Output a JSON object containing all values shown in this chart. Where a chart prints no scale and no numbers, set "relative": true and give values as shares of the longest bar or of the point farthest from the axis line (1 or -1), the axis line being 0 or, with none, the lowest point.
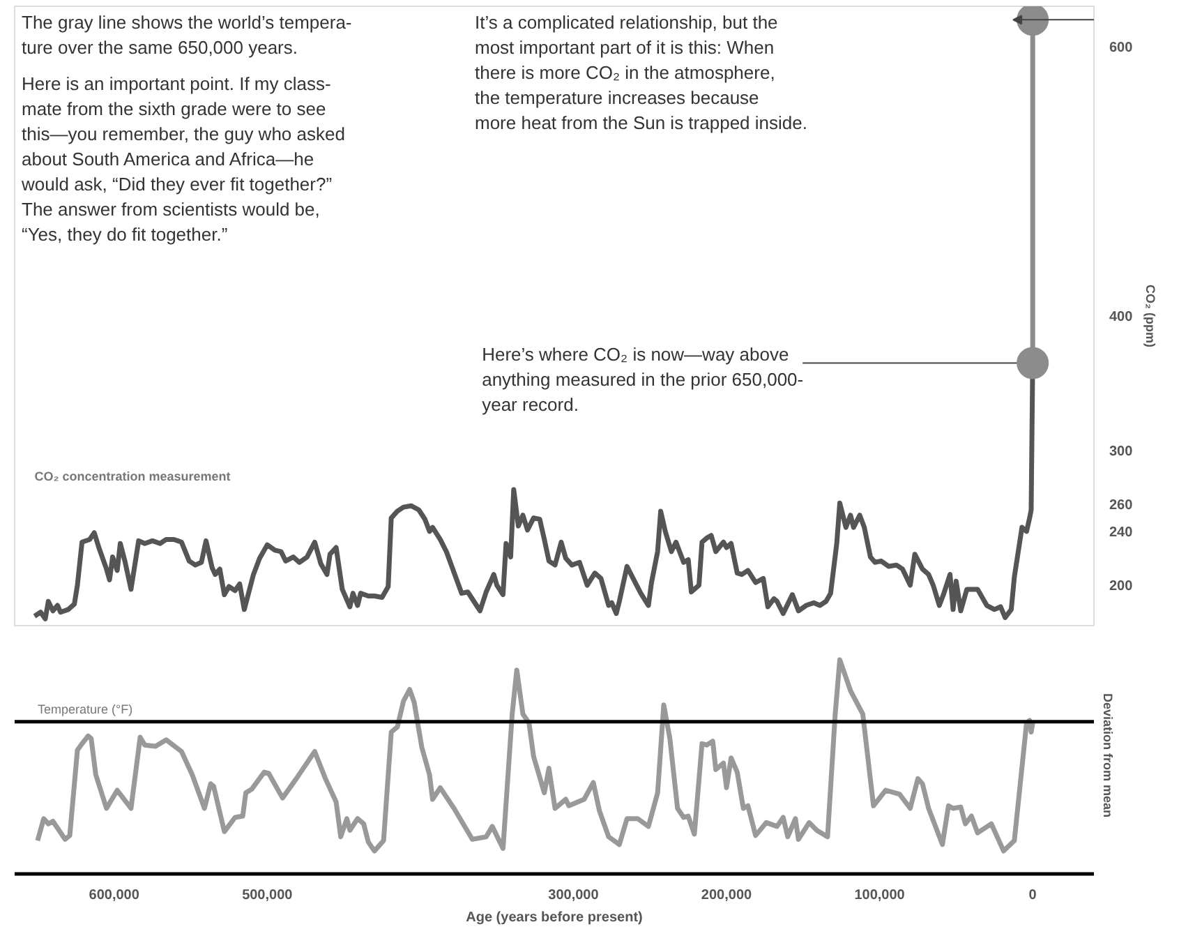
{
  "chart_data": [
    {
      "type": "line",
      "ylabel": "CO₂ (ppm)",
      "xlim": [
        665000,
        -40000
      ],
      "ylim": [
        170,
        630
      ],
      "yticks": [
        200,
        240,
        260,
        300,
        400,
        600
      ],
      "tick_labels": "y",
      "grid": false,
      "annotations": [
        "The gray line shows the world’s tempera-\nture over the same 650,000 years.",
        "Here is an important point. If my class-\nmate from the sixth grade were to see\nthis—you remember, the guy who asked\nabout South America and Africa—he\nwould ask, “Did they ever fit together?”",
        "The answer from scientists would be,\n“Yes, they do fit together.”",
        "It’s a complicated relationship, but the\nmost important part of it is this: When\nthere is more CO₂ in the atmosphere,\nthe temperature increases because\nmore heat from the Sun is trapped inside.",
        {
          "text": "Here’s where CO₂ is now—way above\nanything measured in the prior 650,000-\nyear record.",
          "x": 0,
          "y": 365
        }
      ],
      "series": [
        {
          "name": "CO₂ concentration measurement",
          "color": "#555555",
          "marker": "none",
          "x": [
            652000,
            648000,
            645000,
            643000,
            640000,
            637000,
            635000,
            630000,
            626000,
            624000,
            621000,
            616000,
            613000,
            610000,
            605000,
            603000,
            601000,
            598000,
            596000,
            593000,
            589000,
            584000,
            580000,
            575000,
            570000,
            566000,
            561000,
            556000,
            551000,
            547000,
            543000,
            540000,
            536000,
            534000,
            531000,
            528000,
            525000,
            521000,
            518000,
            515000,
            509000,
            505000,
            500000,
            495000,
            491000,
            488000,
            483000,
            479000,
            474000,
            469000,
            465000,
            461000,
            459000,
            455000,
            451000,
            446000,
            444000,
            441000,
            439000,
            434000,
            430000,
            425000,
            421000,
            419000,
            415000,
            411000,
            406000,
            401000,
            397000,
            394000,
            392000,
            387000,
            383000,
            373000,
            369000,
            361000,
            357000,
            352000,
            350000,
            346000,
            344000,
            341000,
            339000,
            336000,
            333000,
            330000,
            326000,
            322000,
            319000,
            316000,
            312000,
            308000,
            305000,
            301000,
            296000,
            291000,
            286000,
            282000,
            277000,
            275000,
            272000,
            270000,
            265000,
            261000,
            256000,
            251000,
            249000,
            245000,
            243000,
            240000,
            236000,
            233000,
            228000,
            225000,
            223000,
            218000,
            216000,
            213000,
            210000,
            207000,
            202000,
            200000,
            197000,
            193000,
            190000,
            186000,
            181000,
            176000,
            173000,
            169000,
            167000,
            163000,
            157000,
            153000,
            148000,
            143000,
            139000,
            135000,
            132000,
            128000,
            126000,
            122000,
            119000,
            117000,
            113000,
            110000,
            106000,
            103000,
            99000,
            94000,
            89000,
            85000,
            80000,
            77000,
            72000,
            68000,
            65000,
            61000,
            58000,
            54000,
            52000,
            50000,
            47000,
            43000,
            36000,
            30000,
            25000,
            21000,
            18000,
            14000,
            12000,
            7000,
            4000,
            2000,
            1000,
            0
          ],
          "values": [
            177,
            180,
            175,
            188,
            181,
            185,
            180,
            182,
            186,
            200,
            232,
            234,
            239,
            228,
            212,
            204,
            221,
            211,
            231,
            218,
            197,
            233,
            231,
            233,
            231,
            234,
            234,
            232,
            218,
            215,
            217,
            233,
            213,
            208,
            212,
            193,
            199,
            196,
            201,
            182,
            208,
            220,
            230,
            226,
            225,
            218,
            221,
            217,
            221,
            232,
            216,
            208,
            223,
            228,
            197,
            184,
            194,
            185,
            194,
            192,
            192,
            191,
            199,
            250,
            255,
            258,
            259,
            256,
            249,
            240,
            243,
            234,
            225,
            194,
            195,
            181,
            195,
            208,
            200,
            193,
            231,
            221,
            271,
            244,
            252,
            241,
            250,
            249,
            234,
            218,
            215,
            232,
            220,
            215,
            217,
            200,
            209,
            205,
            185,
            187,
            179,
            188,
            214,
            205,
            194,
            185,
            202,
            225,
            255,
            240,
            225,
            232,
            217,
            219,
            195,
            200,
            232,
            235,
            237,
            225,
            232,
            228,
            231,
            209,
            208,
            211,
            202,
            205,
            184,
            190,
            188,
            179,
            193,
            181,
            185,
            187,
            185,
            188,
            194,
            231,
            261,
            243,
            252,
            243,
            252,
            243,
            221,
            217,
            218,
            214,
            215,
            212,
            200,
            223,
            212,
            208,
            200,
            185,
            194,
            208,
            182,
            203,
            181,
            197,
            197,
            185,
            182,
            184,
            176,
            182,
            206,
            243,
            240,
            250,
            256,
            365
          ]
        },
        {
          "color": "#8c8c8c",
          "marker": "circle",
          "x": [
            0,
            0
          ],
          "values": [
            365,
            620
          ]
        }
      ]
    },
    {
      "type": "line",
      "relative": true,
      "xlabel": "Age (years before present)",
      "ylabel": "Deviation from mean",
      "xlim": [
        665000,
        -40000
      ],
      "xticks": [
        {
          "value": 600000,
          "label": "600,000"
        },
        {
          "value": 500000,
          "label": "500,000"
        },
        {
          "value": 300000,
          "label": "300,000"
        },
        {
          "value": 200000,
          "label": "200,000"
        },
        {
          "value": 100000,
          "label": "100,000"
        },
        0
      ],
      "tick_labels": "x",
      "grid": false,
      "series": [
        {
          "name": "Temperature (°F)",
          "color": "#999999",
          "marker": "none",
          "x": [
            650000,
            646000,
            643000,
            640000,
            636000,
            632000,
            629000,
            624000,
            621000,
            617000,
            615000,
            612000,
            605000,
            598000,
            589000,
            583000,
            580000,
            573000,
            566000,
            556000,
            549000,
            541000,
            537000,
            535000,
            528000,
            521000,
            516000,
            514000,
            510000,
            502000,
            499000,
            490000,
            481000,
            469000,
            462000,
            455000,
            452000,
            448000,
            446000,
            441000,
            437000,
            434000,
            430000,
            424000,
            419000,
            415000,
            411000,
            407000,
            404000,
            399000,
            394000,
            392000,
            387000,
            378000,
            366000,
            357000,
            353000,
            346000,
            340000,
            337000,
            333000,
            329000,
            326000,
            319000,
            316000,
            312000,
            305000,
            303000,
            293000,
            287000,
            283000,
            277000,
            270000,
            265000,
            258000,
            251000,
            245000,
            241000,
            237000,
            232000,
            228000,
            225000,
            221000,
            216000,
            213000,
            209000,
            207000,
            202000,
            200000,
            197000,
            193000,
            189000,
            186000,
            181000,
            174000,
            167000,
            163000,
            160000,
            155000,
            153000,
            146000,
            141000,
            134000,
            129000,
            126000,
            119000,
            111000,
            104000,
            96000,
            87000,
            80000,
            75000,
            72000,
            68000,
            59000,
            55000,
            52000,
            47000,
            44000,
            40000,
            36000,
            27000,
            19000,
            12000,
            4000,
            2000,
            1000,
            0
          ],
          "values": [
            -0.92,
            -0.75,
            -0.79,
            -0.77,
            -0.84,
            -0.91,
            -0.88,
            -0.22,
            -0.17,
            -0.11,
            -0.13,
            -0.41,
            -0.67,
            -0.53,
            -0.67,
            -0.12,
            -0.18,
            -0.19,
            -0.14,
            -0.23,
            -0.41,
            -0.67,
            -0.48,
            -0.5,
            -0.85,
            -0.74,
            -0.73,
            -0.55,
            -0.52,
            -0.39,
            -0.4,
            -0.59,
            -0.44,
            -0.23,
            -0.44,
            -0.62,
            -0.89,
            -0.75,
            -0.84,
            -0.75,
            -0.79,
            -0.93,
            -1.0,
            -0.92,
            -0.08,
            -0.04,
            0.16,
            0.25,
            0.15,
            -0.2,
            -0.41,
            -0.6,
            -0.51,
            -0.67,
            -0.91,
            -0.89,
            -0.81,
            -0.98,
            0.06,
            0.4,
            0.06,
            -0.01,
            -0.27,
            -0.55,
            -0.36,
            -0.67,
            -0.6,
            -0.65,
            -0.6,
            -0.47,
            -0.69,
            -0.89,
            -0.95,
            -0.75,
            -0.75,
            -0.81,
            -0.55,
            0.13,
            -0.13,
            -0.67,
            -0.74,
            -0.73,
            -0.87,
            -0.17,
            -0.18,
            -0.15,
            -0.37,
            -0.32,
            -0.51,
            -0.28,
            -0.39,
            -0.67,
            -0.65,
            -0.88,
            -0.78,
            -0.81,
            -0.74,
            -0.89,
            -0.75,
            -0.91,
            -0.78,
            -0.84,
            -0.89,
            0.06,
            0.48,
            0.24,
            0.06,
            -0.65,
            -0.53,
            -0.56,
            -0.67,
            -0.44,
            -0.48,
            -0.67,
            -0.95,
            -0.65,
            -0.67,
            -0.66,
            -0.79,
            -0.73,
            -0.86,
            -0.79,
            -1.0,
            -0.92,
            -0.01,
            0.01,
            -0.08,
            -0.01
          ]
        }
      ]
    }
  ]
}
